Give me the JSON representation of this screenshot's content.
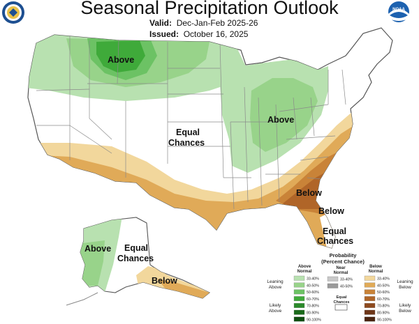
{
  "title": "Seasonal Precipitation Outlook",
  "valid_label": "Valid:",
  "valid_value": "Dec-Jan-Feb 2025-26",
  "issued_label": "Issued:",
  "issued_value": "October 16, 2025",
  "logos": {
    "left": "department-of-commerce-seal",
    "right": "noaa-logo",
    "right_text": "NOAA"
  },
  "map_labels": {
    "above_north": "Above",
    "above_ohio": "Above",
    "equal_line1": "Equal",
    "equal_line2": "Chances",
    "below_southeast": "Below",
    "below_florida": "Below",
    "equal_fl_line1": "Equal",
    "equal_fl_line2": "Chances",
    "alaska_above": "Above",
    "alaska_equal_line1": "Equal",
    "alaska_equal_line2": "Chances",
    "alaska_below": "Below"
  },
  "legend": {
    "title_line1": "Probability",
    "title_line2": "(Percent Chance)",
    "above_header_1": "Above",
    "above_header_2": "Normal",
    "near_header_1": "Near",
    "near_header_2": "Normal",
    "below_header_1": "Below",
    "below_header_2": "Normal",
    "leaning_above_1": "Leaning",
    "leaning_above_2": "Above",
    "likely_above_1": "Likely",
    "likely_above_2": "Above",
    "leaning_below_1": "Leaning",
    "leaning_below_2": "Below",
    "likely_below_1": "Likely",
    "likely_below_2": "Below",
    "equal_1": "Equal",
    "equal_2": "Chances",
    "ranges": [
      "33-40%",
      "40-50%",
      "50-60%",
      "60-70%",
      "70-80%",
      "80-90%",
      "90-100%"
    ],
    "near_ranges": [
      "33-40%",
      "40-50%"
    ],
    "above_colors": [
      "#b8e1b0",
      "#98d38a",
      "#6cc264",
      "#3faa3a",
      "#2a8a2a",
      "#1a6a1a",
      "#0f4d10"
    ],
    "near_colors": [
      "#c8c8c8",
      "#9a9a9a"
    ],
    "below_colors": [
      "#f2d79c",
      "#e0aa58",
      "#c98338",
      "#b06528",
      "#8e4a1e",
      "#6e3618",
      "#4a2410"
    ]
  },
  "colors": {
    "above_1": "#b8e1b0",
    "above_2": "#98d38a",
    "above_3": "#6cc264",
    "above_4": "#3faa3a",
    "below_1": "#f2d79c",
    "below_2": "#e0aa58",
    "below_3": "#c98338",
    "below_4": "#b06528",
    "state_lines": "#8a8a8a"
  }
}
